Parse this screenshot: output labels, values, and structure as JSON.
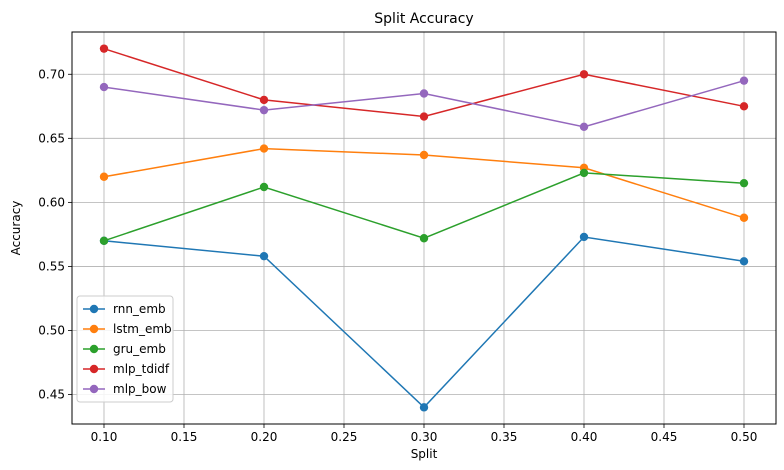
{
  "chart_data": {
    "type": "line",
    "title": "Split Accuracy",
    "xlabel": "Split",
    "ylabel": "Accuracy",
    "xlim": [
      0.08,
      0.52
    ],
    "ylim": [
      0.427,
      0.733
    ],
    "grid": true,
    "legend_position": "lower-left",
    "x": [
      0.1,
      0.2,
      0.3,
      0.4,
      0.5
    ],
    "xticks": [
      0.1,
      0.15,
      0.2,
      0.25,
      0.3,
      0.35,
      0.4,
      0.45,
      0.5
    ],
    "xtick_labels": [
      "0.10",
      "0.15",
      "0.20",
      "0.25",
      "0.30",
      "0.35",
      "0.40",
      "0.45",
      "0.50"
    ],
    "yticks": [
      0.45,
      0.5,
      0.55,
      0.6,
      0.65,
      0.7
    ],
    "ytick_labels": [
      "0.45",
      "0.50",
      "0.55",
      "0.60",
      "0.65",
      "0.70"
    ],
    "series": [
      {
        "name": "rnn_emb",
        "color": "#1f77b4",
        "values": [
          0.57,
          0.558,
          0.44,
          0.573,
          0.554
        ]
      },
      {
        "name": "lstm_emb",
        "color": "#ff7f0e",
        "values": [
          0.62,
          0.642,
          0.637,
          0.627,
          0.588
        ]
      },
      {
        "name": "gru_emb",
        "color": "#2ca02c",
        "values": [
          0.57,
          0.612,
          0.572,
          0.623,
          0.615
        ]
      },
      {
        "name": "mlp_tdidf",
        "color": "#d62728",
        "values": [
          0.72,
          0.68,
          0.667,
          0.7,
          0.675
        ]
      },
      {
        "name": "mlp_bow",
        "color": "#9467bd",
        "values": [
          0.69,
          0.672,
          0.685,
          0.659,
          0.695
        ]
      }
    ]
  }
}
